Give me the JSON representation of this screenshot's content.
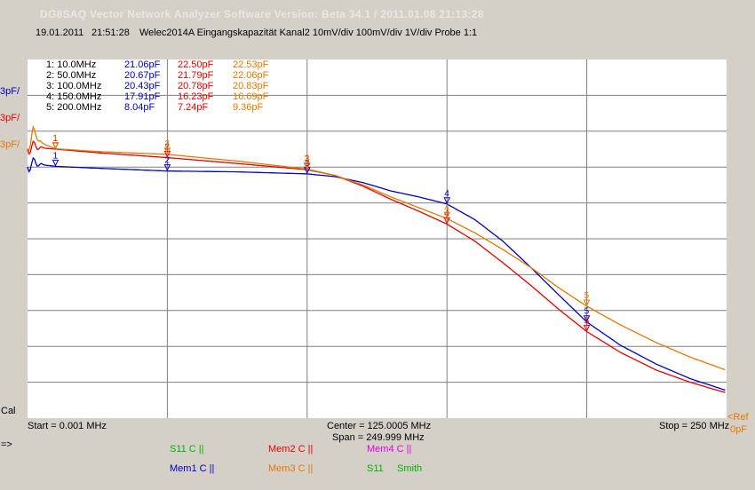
{
  "window": {
    "title": "DG8SAQ Vector Network Analyzer Software   Version:  Beta 34.1 / 2011.01.08 21:13:28",
    "date": "19.01.2011",
    "time": "21:51:28",
    "description": "Welec2014A Eingangskapazität Kanal2 10mV/div 100mV/div 1V/div Probe 1:1"
  },
  "axis": {
    "start": "Start = 0.001 MHz",
    "center": "Center = 125.0005 MHz",
    "span": "Span = 249.999 MHz",
    "stop": "Stop = 250 MHz",
    "y_left_labels": [
      "3pF/",
      "3pF/",
      "3pF/"
    ],
    "cal": "Cal",
    "ref_label": "<Ref",
    "ref_value": "0pF",
    "arrow": "=>"
  },
  "colors": {
    "mem1": "#0000c8",
    "mem2": "#e60000",
    "mem3": "#e67800",
    "s11": "#00b400",
    "mem4": "#e600e6",
    "smith": "#00b400"
  },
  "markers": {
    "rows": [
      {
        "label": "1:   10.0MHz",
        "mem1": "21.06pF",
        "mem2": "22.50pF",
        "mem3": "22.53pF"
      },
      {
        "label": "2:   50.0MHz",
        "mem1": "20.67pF",
        "mem2": "21.79pF",
        "mem3": "22.06pF"
      },
      {
        "label": "3:  100.0MHz",
        "mem1": "20.43pF",
        "mem2": "20.78pF",
        "mem3": "20.83pF"
      },
      {
        "label": "4:  150.0MHz",
        "mem1": "17.91pF",
        "mem2": "16.23pF",
        "mem3": "16.69pF"
      },
      {
        "label": "5:  200.0MHz",
        "mem1": "8.04pF",
        "mem2": "7.24pF",
        "mem3": "9.36pF"
      }
    ]
  },
  "legend": {
    "s11_c": "S11   C ||",
    "mem2_c": "Mem2  C ||",
    "mem4_c": "Mem4  C ||",
    "mem1_c": "Mem1  C ||",
    "mem3_c": "Mem3  C ||",
    "s11": "S11",
    "smith": "Smith"
  },
  "chart_data": {
    "type": "line",
    "xlim": [
      0.001,
      250
    ],
    "ylim": [
      0,
      30
    ],
    "grid": true,
    "series": [
      {
        "name": "Mem1",
        "color": "#0000c8",
        "x": [
          0.001,
          2,
          5,
          10,
          25,
          50,
          75,
          100,
          110,
          120,
          130,
          140,
          150,
          160,
          170,
          180,
          190,
          200,
          212,
          225,
          237,
          250
        ],
        "y": [
          21.0,
          21.4,
          21.2,
          21.06,
          20.9,
          20.67,
          20.6,
          20.43,
          20.2,
          19.7,
          19.0,
          18.5,
          17.91,
          16.6,
          14.8,
          12.6,
          10.3,
          8.04,
          6.1,
          4.5,
          3.3,
          2.3
        ]
      },
      {
        "name": "Mem2",
        "color": "#e60000",
        "x": [
          0.001,
          2,
          5,
          10,
          25,
          50,
          75,
          100,
          110,
          120,
          130,
          140,
          150,
          160,
          170,
          180,
          190,
          200,
          212,
          225,
          237,
          250
        ],
        "y": [
          22.5,
          22.8,
          22.6,
          22.5,
          22.2,
          21.79,
          21.3,
          20.78,
          20.3,
          19.4,
          18.3,
          17.3,
          16.23,
          14.8,
          13.0,
          11.1,
          9.1,
          7.24,
          5.5,
          4.0,
          3.0,
          2.1
        ]
      },
      {
        "name": "Mem3",
        "color": "#e67800",
        "x": [
          0.001,
          2,
          5,
          10,
          25,
          50,
          75,
          100,
          110,
          120,
          130,
          140,
          150,
          160,
          170,
          180,
          190,
          200,
          212,
          225,
          237,
          250
        ],
        "y": [
          22.5,
          24.0,
          23.0,
          22.53,
          22.3,
          22.06,
          21.5,
          20.83,
          20.3,
          19.5,
          18.5,
          17.6,
          16.69,
          15.5,
          14.1,
          12.6,
          10.9,
          9.36,
          7.8,
          6.3,
          5.1,
          4.0
        ]
      }
    ],
    "markers_mhz": [
      10,
      50,
      100,
      150,
      200
    ]
  }
}
